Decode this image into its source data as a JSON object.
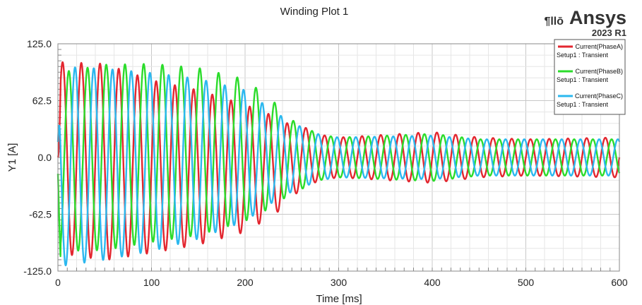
{
  "logo": {
    "mark": "¶llō",
    "brand": "Ansys",
    "version": "2023 R1"
  },
  "chart_data": {
    "type": "line",
    "title": "Winding Plot 1",
    "xlabel": "Time [ms]",
    "ylabel": "Y1 [A]",
    "xlim": [
      0,
      600
    ],
    "ylim": [
      -125.0,
      125.0
    ],
    "xticks": [
      "0",
      "100",
      "200",
      "300",
      "400",
      "500",
      "600"
    ],
    "yticks": [
      "125.0",
      "62.5",
      "0.0",
      "-62.5",
      "-125.0"
    ],
    "grid": true,
    "legend_position": "top-right",
    "frequency_hz": 50,
    "series": [
      {
        "name": "Current(PhaseA)",
        "setup": "Setup1 : Transient",
        "color": "#e3262f",
        "phase_deg": 0,
        "envelope": [
          [
            0,
            105
          ],
          [
            50,
            108
          ],
          [
            100,
            95
          ],
          [
            150,
            85
          ],
          [
            200,
            70
          ],
          [
            230,
            55
          ],
          [
            250,
            40
          ],
          [
            280,
            25
          ],
          [
            300,
            22
          ],
          [
            400,
            28
          ],
          [
            450,
            22
          ],
          [
            500,
            20
          ],
          [
            600,
            22
          ]
        ],
        "offset": [
          [
            0,
            0
          ],
          [
            100,
            -10
          ],
          [
            200,
            -12
          ],
          [
            240,
            -8
          ],
          [
            260,
            0
          ],
          [
            600,
            0
          ]
        ]
      },
      {
        "name": "Current(PhaseB)",
        "setup": "Setup1 : Transient",
        "color": "#2bdc2b",
        "phase_deg": -120,
        "envelope": [
          [
            0,
            98
          ],
          [
            50,
            102
          ],
          [
            100,
            98
          ],
          [
            150,
            92
          ],
          [
            200,
            78
          ],
          [
            230,
            58
          ],
          [
            250,
            40
          ],
          [
            280,
            25
          ],
          [
            300,
            22
          ],
          [
            400,
            26
          ],
          [
            450,
            20
          ],
          [
            500,
            20
          ],
          [
            600,
            20
          ]
        ],
        "offset": [
          [
            0,
            -5
          ],
          [
            100,
            5
          ],
          [
            200,
            8
          ],
          [
            260,
            0
          ],
          [
            600,
            0
          ]
        ]
      },
      {
        "name": "Current(PhaseC)",
        "setup": "Setup1 : Transient",
        "color": "#2bb8ef",
        "phase_deg": 120,
        "envelope": [
          [
            0,
            110
          ],
          [
            50,
            105
          ],
          [
            100,
            98
          ],
          [
            150,
            88
          ],
          [
            200,
            72
          ],
          [
            230,
            50
          ],
          [
            250,
            38
          ],
          [
            280,
            25
          ],
          [
            300,
            22
          ],
          [
            400,
            24
          ],
          [
            450,
            20
          ],
          [
            500,
            20
          ],
          [
            600,
            20
          ]
        ],
        "offset": [
          [
            0,
            -10
          ],
          [
            100,
            -5
          ],
          [
            200,
            2
          ],
          [
            260,
            0
          ],
          [
            600,
            0
          ]
        ]
      }
    ]
  }
}
